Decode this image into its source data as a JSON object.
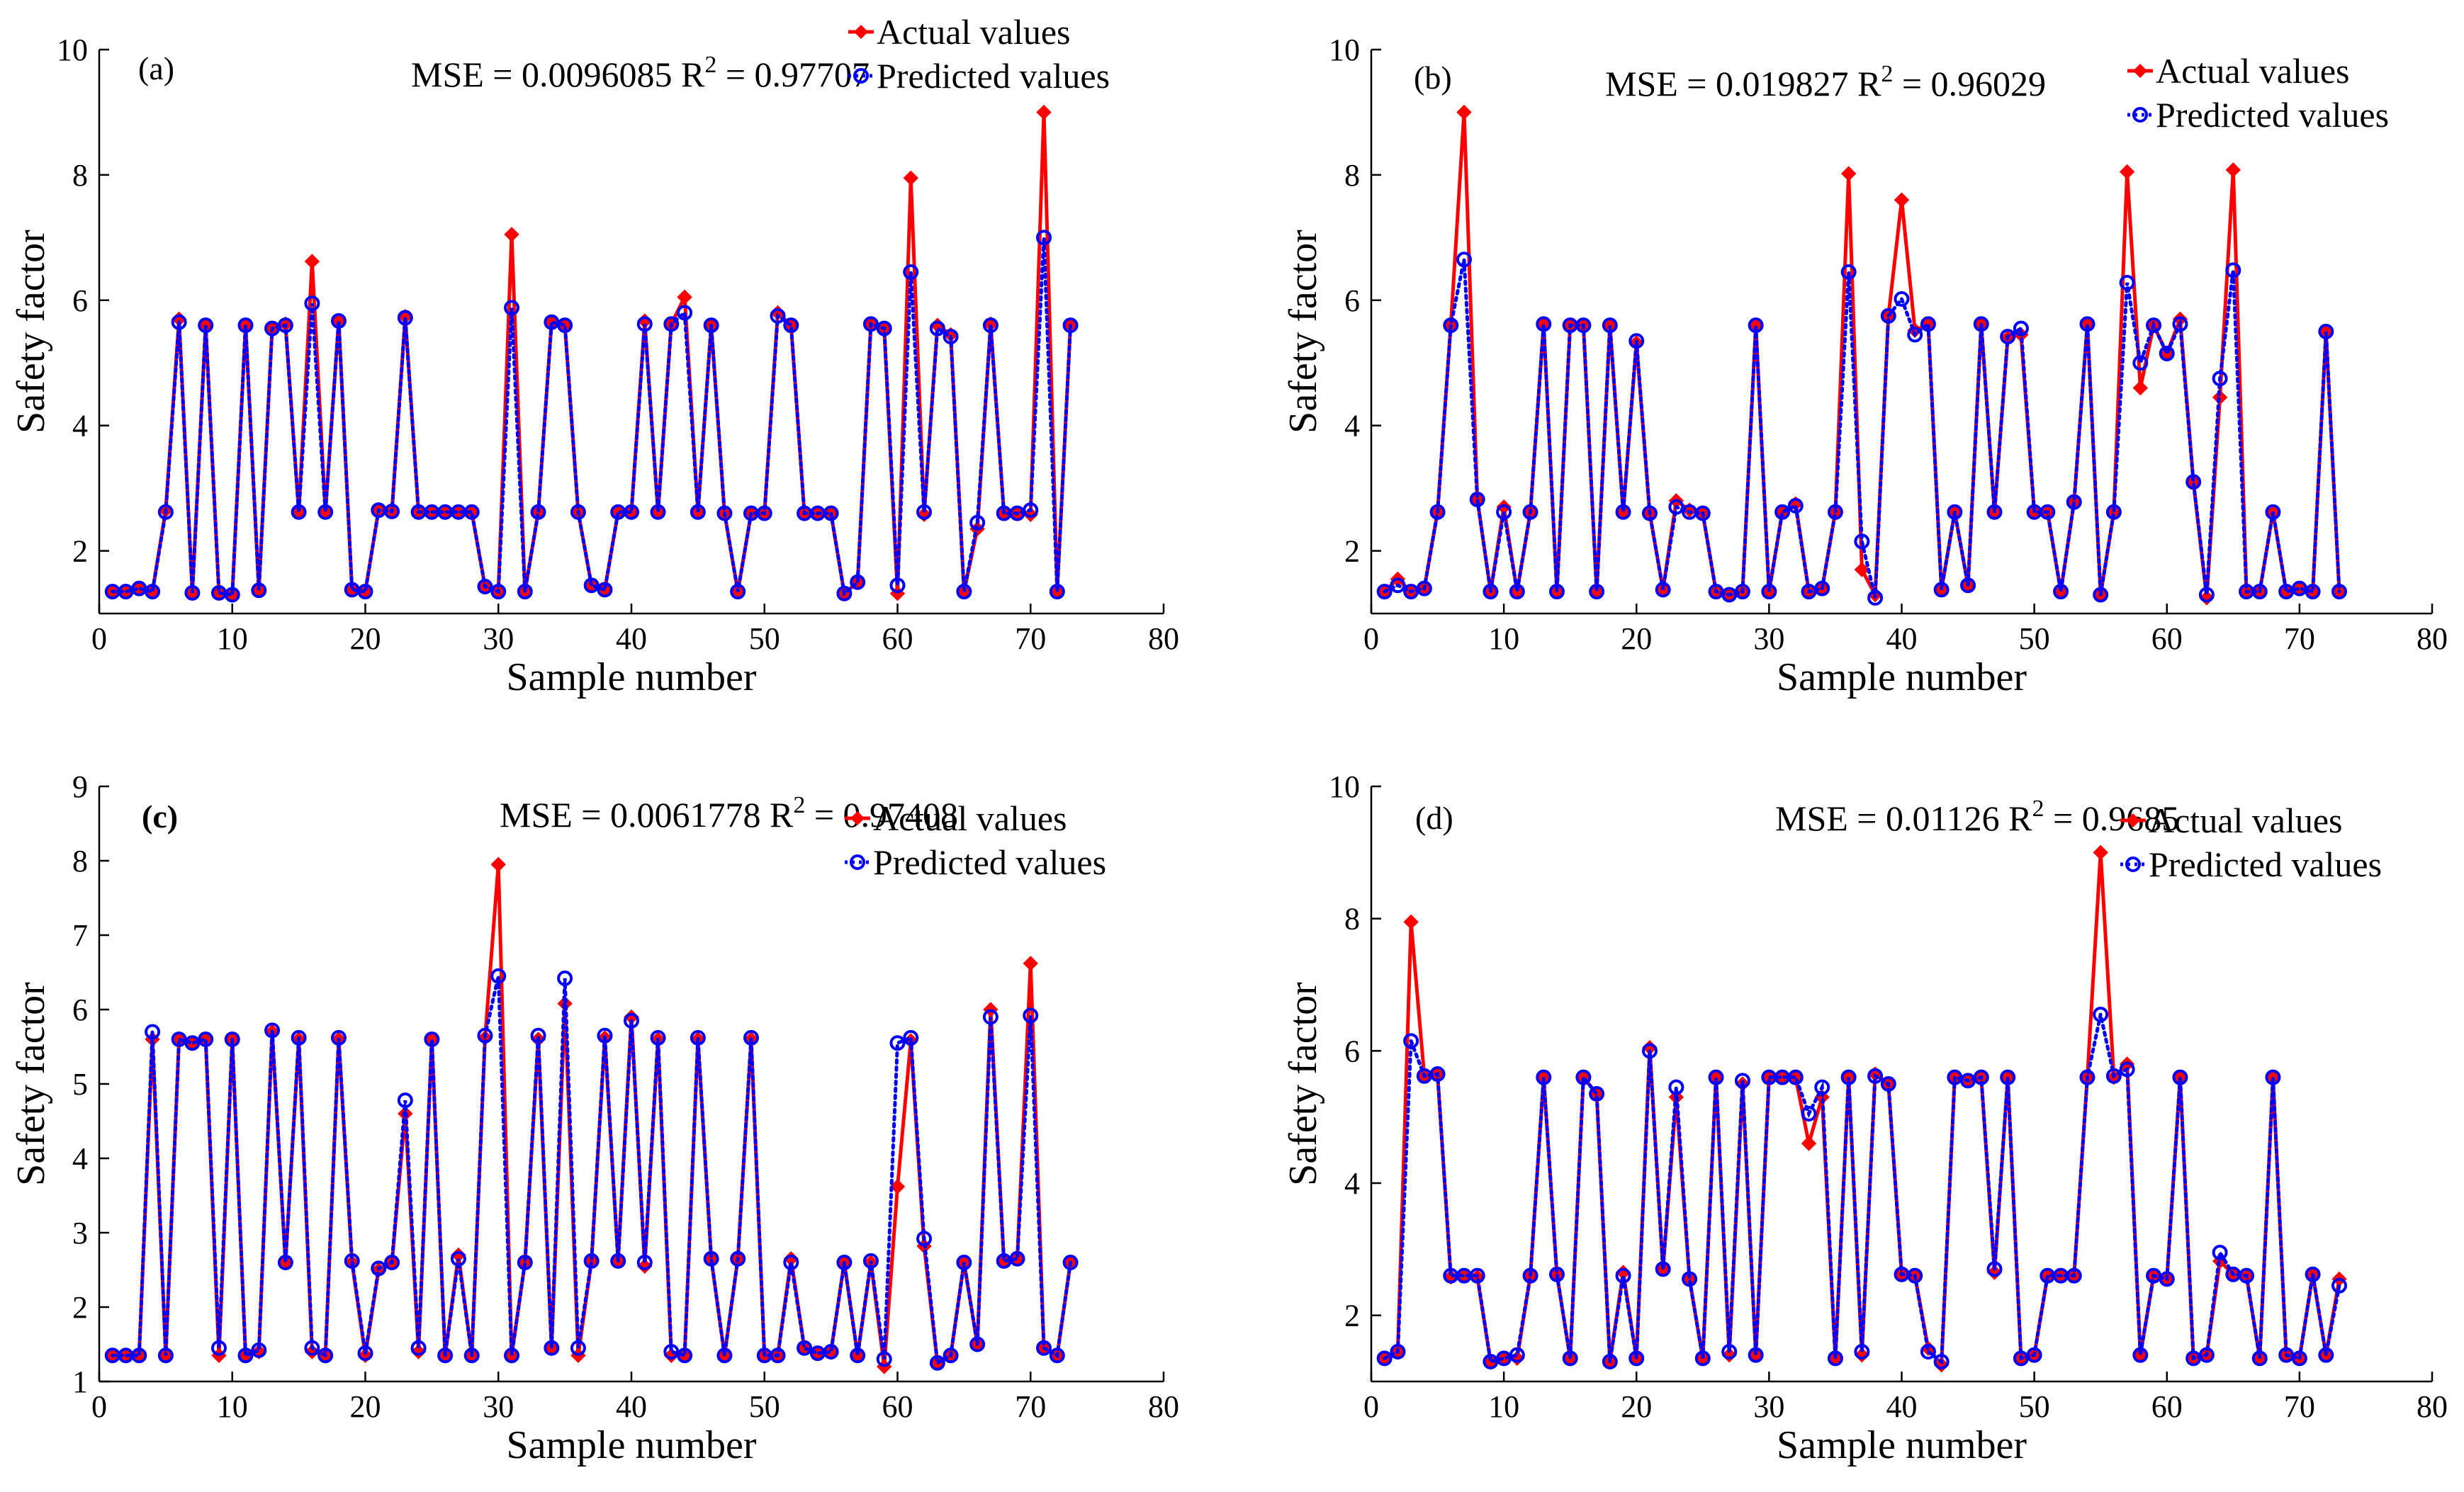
{
  "colors": {
    "actual": "#ff0000",
    "predicted": "#0000ff",
    "axis": "#000000"
  },
  "chart_data": [
    {
      "type": "line",
      "panel_label": "(a)",
      "stats": {
        "mse_text": "MSE = 0.0096085 R",
        "r2_exp": "2",
        "r2_text": " = 0.97707"
      },
      "xlabel": "Sample number",
      "ylabel": "Safety factor",
      "xlim": [
        0,
        80
      ],
      "ylim": [
        1,
        10
      ],
      "xticks": [
        0,
        10,
        20,
        30,
        40,
        50,
        60,
        70,
        80
      ],
      "yticks": [
        2,
        4,
        6,
        8,
        10
      ],
      "legend": [
        "Actual values",
        "Predicted values"
      ],
      "legend_position": "top-right",
      "series": [
        {
          "name": "Actual values",
          "values": [
            1.35,
            1.35,
            1.4,
            1.35,
            2.65,
            5.7,
            1.33,
            5.6,
            1.33,
            1.3,
            5.6,
            1.37,
            5.55,
            5.62,
            2.62,
            6.62,
            2.62,
            5.67,
            1.38,
            1.35,
            2.65,
            2.63,
            5.74,
            2.62,
            2.62,
            2.62,
            2.62,
            2.62,
            1.43,
            1.35,
            7.05,
            1.35,
            2.62,
            5.65,
            5.6,
            2.62,
            1.45,
            1.38,
            2.62,
            2.62,
            5.67,
            2.62,
            5.62,
            6.05,
            2.62,
            5.6,
            2.6,
            1.35,
            2.6,
            2.6,
            5.8,
            5.6,
            2.6,
            2.6,
            2.6,
            1.32,
            1.5,
            5.62,
            5.55,
            1.32,
            7.95,
            2.58,
            5.6,
            5.45,
            1.35,
            2.35,
            5.62,
            2.6,
            2.6,
            2.58,
            9.0,
            1.35,
            5.6
          ]
        },
        {
          "name": "Predicted values",
          "values": [
            1.35,
            1.35,
            1.4,
            1.35,
            2.62,
            5.65,
            1.33,
            5.6,
            1.33,
            1.3,
            5.6,
            1.37,
            5.55,
            5.6,
            2.62,
            5.95,
            2.62,
            5.67,
            1.38,
            1.35,
            2.65,
            2.63,
            5.72,
            2.62,
            2.62,
            2.62,
            2.62,
            2.62,
            1.43,
            1.35,
            5.88,
            1.35,
            2.62,
            5.65,
            5.6,
            2.62,
            1.45,
            1.38,
            2.62,
            2.62,
            5.62,
            2.62,
            5.62,
            5.8,
            2.62,
            5.6,
            2.6,
            1.35,
            2.6,
            2.6,
            5.75,
            5.6,
            2.6,
            2.6,
            2.6,
            1.32,
            1.5,
            5.62,
            5.55,
            1.45,
            6.45,
            2.62,
            5.55,
            5.42,
            1.35,
            2.45,
            5.6,
            2.6,
            2.6,
            2.65,
            7.0,
            1.35,
            5.6
          ]
        }
      ]
    },
    {
      "type": "line",
      "panel_label": "(b)",
      "stats": {
        "mse_text": "MSE = 0.019827 R",
        "r2_exp": "2",
        "r2_text": " = 0.96029"
      },
      "xlabel": "Sample number",
      "ylabel": "Safety factor",
      "xlim": [
        0,
        80
      ],
      "ylim": [
        1,
        10
      ],
      "xticks": [
        0,
        10,
        20,
        30,
        40,
        50,
        60,
        70,
        80
      ],
      "yticks": [
        2,
        4,
        6,
        8,
        10
      ],
      "legend": [
        "Actual values",
        "Predicted values"
      ],
      "legend_position": "top-right",
      "series": [
        {
          "name": "Actual values",
          "values": [
            1.35,
            1.55,
            1.35,
            1.4,
            2.62,
            5.6,
            9.0,
            2.82,
            1.35,
            2.7,
            1.35,
            2.62,
            5.62,
            1.35,
            5.6,
            5.6,
            1.35,
            5.6,
            2.62,
            5.32,
            2.6,
            1.38,
            2.8,
            2.65,
            2.6,
            1.35,
            1.3,
            1.35,
            5.6,
            1.35,
            2.62,
            2.75,
            1.35,
            1.4,
            2.62,
            8.02,
            1.7,
            1.3,
            5.75,
            7.6,
            5.52,
            5.62,
            1.38,
            2.62,
            1.45,
            5.62,
            2.62,
            5.4,
            5.45,
            2.62,
            2.62,
            1.35,
            2.78,
            5.62,
            1.3,
            2.62,
            8.05,
            4.6,
            5.6,
            5.15,
            5.7,
            3.1,
            1.25,
            4.45,
            8.08,
            1.35,
            1.35,
            2.62,
            1.35,
            1.4,
            1.35,
            5.5,
            1.35
          ]
        },
        {
          "name": "Predicted values",
          "values": [
            1.35,
            1.45,
            1.35,
            1.4,
            2.62,
            5.6,
            6.65,
            2.82,
            1.35,
            2.62,
            1.35,
            2.62,
            5.62,
            1.35,
            5.6,
            5.6,
            1.35,
            5.6,
            2.62,
            5.35,
            2.6,
            1.38,
            2.7,
            2.62,
            2.6,
            1.35,
            1.3,
            1.35,
            5.6,
            1.35,
            2.62,
            2.72,
            1.35,
            1.4,
            2.62,
            6.45,
            2.15,
            1.25,
            5.75,
            6.02,
            5.45,
            5.62,
            1.38,
            2.62,
            1.45,
            5.62,
            2.62,
            5.42,
            5.55,
            2.62,
            2.62,
            1.35,
            2.78,
            5.62,
            1.3,
            2.62,
            6.28,
            5.0,
            5.6,
            5.15,
            5.62,
            3.1,
            1.3,
            4.75,
            6.48,
            1.35,
            1.35,
            2.62,
            1.35,
            1.4,
            1.35,
            5.5,
            1.35
          ]
        }
      ]
    },
    {
      "type": "line",
      "panel_label": "(c)",
      "stats": {
        "mse_text": "MSE = 0.0061778 R",
        "r2_exp": "2",
        "r2_text": " = 0.97408"
      },
      "xlabel": "Sample number",
      "ylabel": "Safety factor",
      "xlim": [
        0,
        80
      ],
      "ylim": [
        1,
        9
      ],
      "xticks": [
        0,
        10,
        20,
        30,
        40,
        50,
        60,
        70,
        80
      ],
      "yticks": [
        1,
        2,
        3,
        4,
        5,
        6,
        7,
        8,
        9
      ],
      "legend": [
        "Actual values",
        "Predicted values"
      ],
      "legend_position": "top-right",
      "series": [
        {
          "name": "Actual values",
          "values": [
            1.35,
            1.35,
            1.35,
            5.6,
            1.35,
            5.6,
            5.55,
            5.6,
            1.35,
            5.6,
            1.35,
            1.4,
            5.7,
            2.6,
            5.6,
            1.4,
            1.35,
            5.6,
            2.6,
            1.35,
            2.5,
            2.6,
            4.6,
            1.4,
            5.6,
            1.35,
            2.7,
            1.35,
            5.62,
            7.95,
            1.35,
            2.6,
            5.6,
            1.45,
            6.08,
            1.35,
            2.62,
            5.62,
            2.62,
            5.9,
            2.55,
            5.6,
            1.35,
            1.35,
            5.6,
            2.65,
            1.35,
            2.65,
            5.6,
            1.35,
            1.35,
            2.65,
            1.45,
            1.38,
            1.4,
            2.6,
            1.35,
            2.6,
            1.2,
            3.62,
            5.58,
            2.82,
            1.25,
            1.35,
            2.6,
            1.5,
            6.0,
            2.62,
            2.65,
            6.62,
            1.45,
            1.35,
            2.6
          ]
        },
        {
          "name": "Predicted values",
          "values": [
            1.35,
            1.35,
            1.35,
            5.7,
            1.35,
            5.6,
            5.55,
            5.6,
            1.45,
            5.6,
            1.35,
            1.42,
            5.72,
            2.6,
            5.62,
            1.45,
            1.35,
            5.62,
            2.62,
            1.38,
            2.52,
            2.6,
            4.78,
            1.45,
            5.6,
            1.35,
            2.65,
            1.35,
            5.65,
            6.45,
            1.35,
            2.6,
            5.65,
            1.45,
            6.42,
            1.45,
            2.62,
            5.65,
            2.62,
            5.85,
            2.6,
            5.62,
            1.4,
            1.35,
            5.62,
            2.65,
            1.35,
            2.65,
            5.62,
            1.35,
            1.35,
            2.6,
            1.45,
            1.38,
            1.4,
            2.6,
            1.35,
            2.62,
            1.3,
            5.55,
            5.62,
            2.92,
            1.25,
            1.35,
            2.6,
            1.5,
            5.9,
            2.62,
            2.65,
            5.92,
            1.45,
            1.35,
            2.6
          ]
        }
      ]
    },
    {
      "type": "line",
      "panel_label": "(d)",
      "stats": {
        "mse_text": "MSE = 0.01126 R",
        "r2_exp": "2",
        "r2_text": " = 0.9685"
      },
      "xlabel": "Sample number",
      "ylabel": "Safety factor",
      "xlim": [
        0,
        80
      ],
      "ylim": [
        1,
        10
      ],
      "xticks": [
        0,
        10,
        20,
        30,
        40,
        50,
        60,
        70,
        80
      ],
      "yticks": [
        2,
        4,
        6,
        8,
        10
      ],
      "legend": [
        "Actual values",
        "Predicted values"
      ],
      "legend_position": "top-right",
      "series": [
        {
          "name": "Actual values",
          "values": [
            1.35,
            1.45,
            7.95,
            5.62,
            5.65,
            2.58,
            2.6,
            2.58,
            1.3,
            1.35,
            1.35,
            2.6,
            5.6,
            2.62,
            1.35,
            5.6,
            5.35,
            1.3,
            2.65,
            1.35,
            6.05,
            2.7,
            5.3,
            2.55,
            1.35,
            5.6,
            1.4,
            5.5,
            1.4,
            5.6,
            5.6,
            5.6,
            4.6,
            5.3,
            1.35,
            5.6,
            1.4,
            5.65,
            5.5,
            2.62,
            2.6,
            1.5,
            1.25,
            5.6,
            5.55,
            5.6,
            2.65,
            5.6,
            1.35,
            1.4,
            2.6,
            2.6,
            2.6,
            5.6,
            9.0,
            5.6,
            5.8,
            1.4,
            2.6,
            2.55,
            5.6,
            1.35,
            1.4,
            2.82,
            2.62,
            2.6,
            1.35,
            5.6,
            1.4,
            1.35,
            2.62,
            1.4,
            2.55
          ]
        },
        {
          "name": "Predicted values",
          "values": [
            1.35,
            1.45,
            6.15,
            5.62,
            5.65,
            2.6,
            2.6,
            2.6,
            1.3,
            1.35,
            1.4,
            2.6,
            5.6,
            2.62,
            1.35,
            5.6,
            5.35,
            1.3,
            2.6,
            1.35,
            6.0,
            2.7,
            5.45,
            2.55,
            1.35,
            5.6,
            1.45,
            5.55,
            1.4,
            5.6,
            5.6,
            5.6,
            5.05,
            5.45,
            1.35,
            5.6,
            1.45,
            5.62,
            5.5,
            2.62,
            2.6,
            1.45,
            1.3,
            5.6,
            5.55,
            5.6,
            2.7,
            5.6,
            1.35,
            1.4,
            2.6,
            2.6,
            2.6,
            5.6,
            6.55,
            5.62,
            5.72,
            1.4,
            2.6,
            2.55,
            5.6,
            1.35,
            1.4,
            2.95,
            2.62,
            2.6,
            1.35,
            5.6,
            1.4,
            1.35,
            2.62,
            1.4,
            2.45
          ]
        }
      ]
    }
  ]
}
